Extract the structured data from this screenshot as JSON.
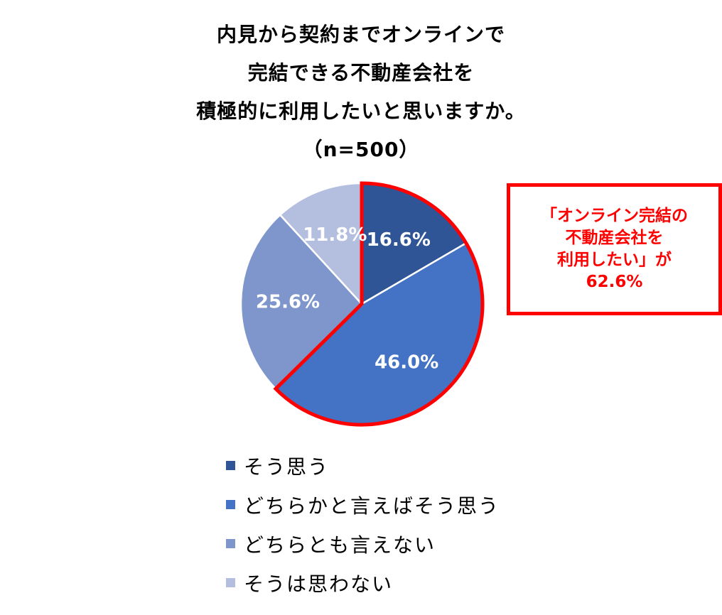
{
  "title": {
    "line1": "内見から契約までオンラインで",
    "line2": "完結できる不動産会社を",
    "line3": "積極的に利用したいと思いますか。",
    "line4": "（n=500）"
  },
  "callout": {
    "line1": "「オンライン完結の",
    "line2": "不動産会社を",
    "line3": "利用したい」が",
    "line4": "62.6%",
    "color": "#ff0000"
  },
  "chart_data": {
    "type": "pie",
    "unit": "%",
    "start_angle": "12 o'clock",
    "direction": "clockwise",
    "legend_position": "bottom",
    "highlighted_slices": [
      "そう思う",
      "どちらかと言えばそう思う"
    ],
    "highlight_color": "#ff0000",
    "slices": [
      {
        "label": "そう思う",
        "value": 16.6,
        "display": "16.6%",
        "color": "#2f5597"
      },
      {
        "label": "どちらかと言えばそう思う",
        "value": 46.0,
        "display": "46.0%",
        "color": "#4472c4"
      },
      {
        "label": "どちらとも言えない",
        "value": 25.6,
        "display": "25.6%",
        "color": "#7f96cd"
      },
      {
        "label": "そうは思わない",
        "value": 11.8,
        "display": "11.8%",
        "color": "#b4bfdf"
      }
    ]
  }
}
